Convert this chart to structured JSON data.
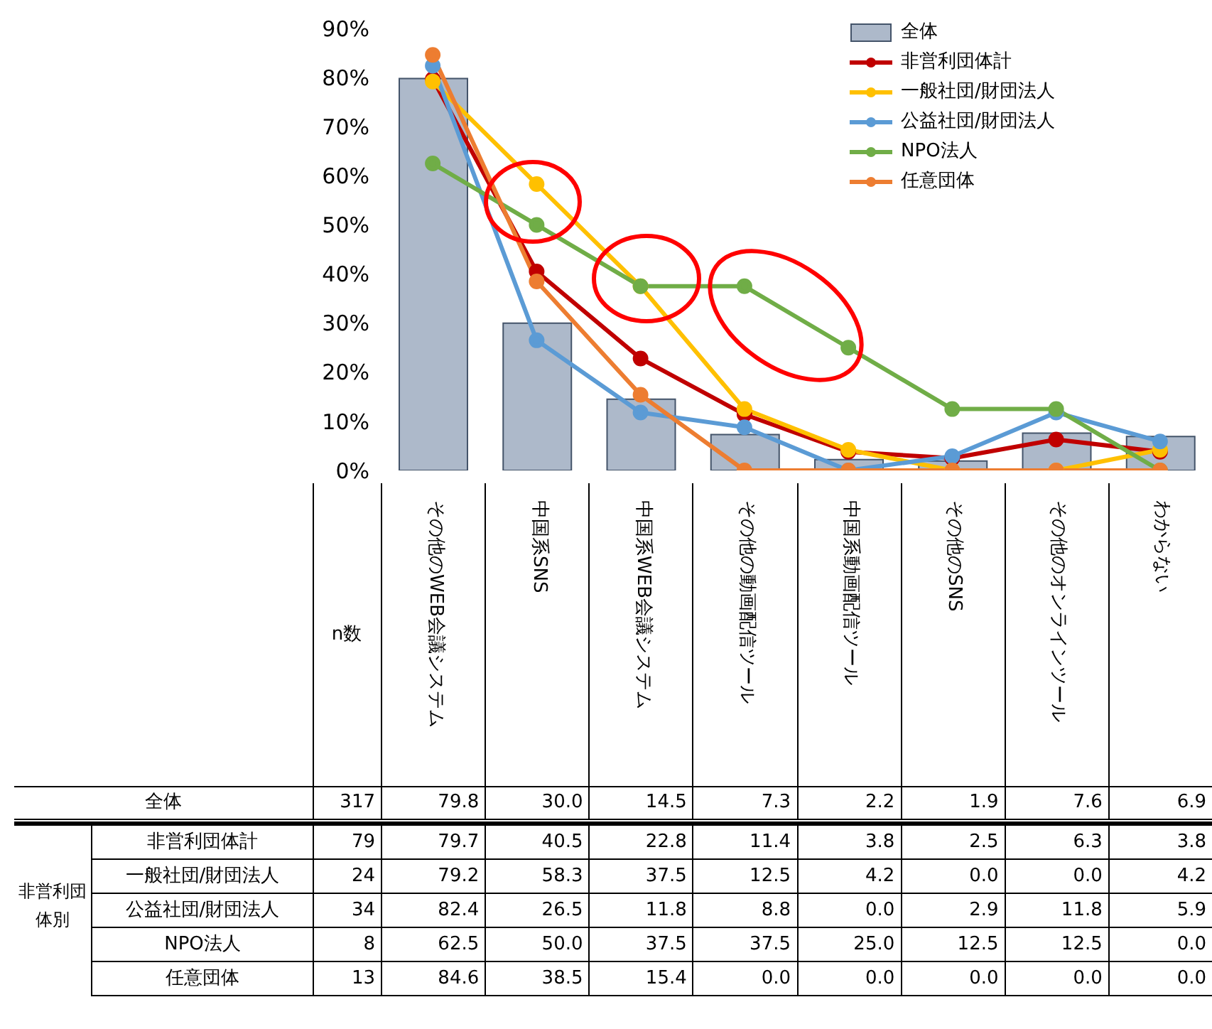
{
  "chart_data": {
    "type": "line",
    "categories": [
      "その他のWEB会議システム",
      "中国系SNS",
      "中国系WEB会議システム",
      "その他の動画配信ツール",
      "中国系動画配信ツール",
      "その他のSNS",
      "その他のオンラインツール",
      "わからない"
    ],
    "series": [
      {
        "name": "全体",
        "type": "bar",
        "color": "#adb9ca",
        "values": [
          79.8,
          30.0,
          14.5,
          7.3,
          2.2,
          1.9,
          7.6,
          6.9
        ],
        "value_labels": [
          "79.8",
          "30.0",
          "14.5",
          "7.3",
          "2.2",
          "1.9",
          "7.6",
          "6.9"
        ]
      },
      {
        "name": "非営利団体計",
        "color": "#c00000",
        "values": [
          79.7,
          40.5,
          22.8,
          11.4,
          3.8,
          2.5,
          6.3,
          3.8
        ],
        "value_labels": [
          "79.7",
          "40.5",
          "22.8",
          "11.4",
          "3.8",
          "2.5",
          "6.3",
          "3.8"
        ]
      },
      {
        "name": "一般社団/財団法人",
        "color": "#ffc000",
        "values": [
          79.2,
          58.3,
          37.5,
          12.5,
          4.2,
          0.0,
          0.0,
          4.2
        ],
        "value_labels": [
          "79.2",
          "58.3",
          "37.5",
          "12.5",
          "4.2",
          "0.0",
          "0.0",
          "4.2"
        ]
      },
      {
        "name": "公益社団/財団法人",
        "color": "#5b9bd5",
        "values": [
          82.4,
          26.5,
          11.8,
          8.8,
          0.0,
          2.9,
          11.8,
          5.9
        ],
        "value_labels": [
          "82.4",
          "26.5",
          "11.8",
          "8.8",
          "0.0",
          "2.9",
          "11.8",
          "5.9"
        ]
      },
      {
        "name": "NPO法人",
        "color": "#70ad47",
        "values": [
          62.5,
          50.0,
          37.5,
          37.5,
          25.0,
          12.5,
          12.5,
          0.0
        ],
        "value_labels": [
          "62.5",
          "50.0",
          "37.5",
          "37.5",
          "25.0",
          "12.5",
          "12.5",
          "0.0"
        ]
      },
      {
        "name": "任意団体",
        "color": "#ed7d31",
        "values": [
          84.6,
          38.5,
          15.4,
          0.0,
          0.0,
          0.0,
          0.0,
          0.0
        ],
        "value_labels": [
          "84.6",
          "38.5",
          "15.4",
          "0.0",
          "0.0",
          "0.0",
          "0.0",
          "0.0"
        ]
      }
    ],
    "ylim": [
      0,
      90
    ],
    "yticks": [
      {
        "value": 0,
        "label": "0%"
      },
      {
        "value": 10,
        "label": "10%"
      },
      {
        "value": 20,
        "label": "20%"
      },
      {
        "value": 30,
        "label": "30%"
      },
      {
        "value": 40,
        "label": "40%"
      },
      {
        "value": 50,
        "label": "50%"
      },
      {
        "value": 60,
        "label": "60%"
      },
      {
        "value": 70,
        "label": "70%"
      },
      {
        "value": 80,
        "label": "80%"
      },
      {
        "value": 90,
        "label": "90%"
      }
    ],
    "grid": false,
    "legend": "top right",
    "marker": "circle",
    "annotations": [
      "n数",
      "非営利団体別",
      "317",
      "79",
      "24",
      "34",
      "8",
      "13"
    ]
  }
}
